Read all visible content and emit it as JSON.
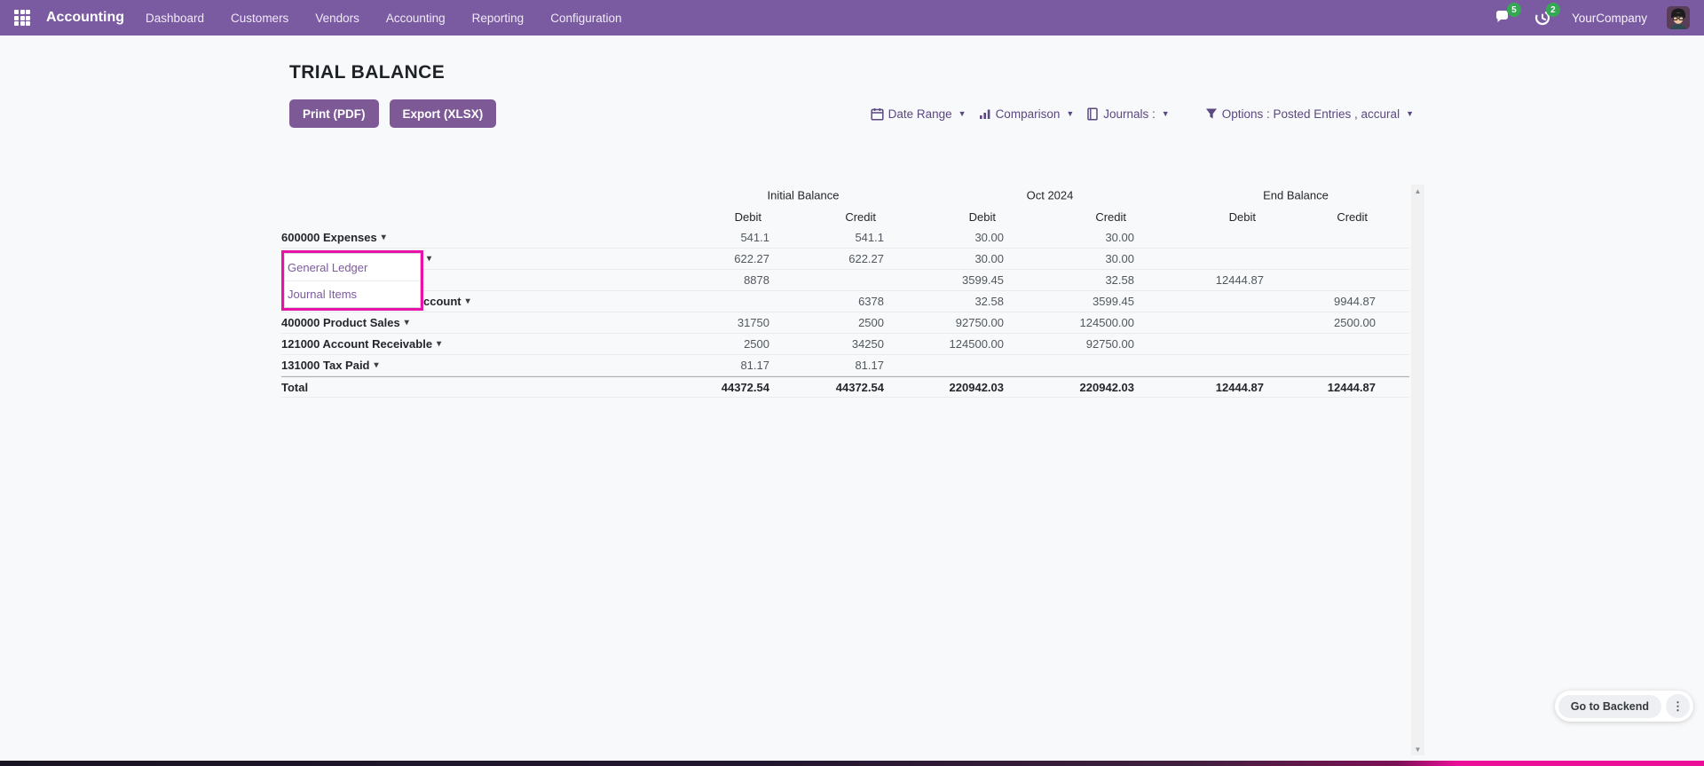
{
  "navbar": {
    "brand": "Accounting",
    "menus": [
      "Dashboard",
      "Customers",
      "Vendors",
      "Accounting",
      "Reporting",
      "Configuration"
    ],
    "messages_badge": "5",
    "activities_badge": "2",
    "company": "YourCompany"
  },
  "report": {
    "title": "TRIAL BALANCE",
    "buttons": {
      "print": "Print (PDF)",
      "export": "Export (XLSX)"
    },
    "filters": [
      {
        "icon": "calendar-icon",
        "label": "Date Range"
      },
      {
        "icon": "bar-chart-icon",
        "label": "Comparison"
      },
      {
        "icon": "journal-icon",
        "label": "Journals :"
      },
      {
        "icon": "filter-icon",
        "label": "Options : Posted Entries , accural"
      }
    ]
  },
  "table": {
    "groups": [
      "Initial Balance",
      "Oct 2024",
      "End Balance"
    ],
    "subheaders": [
      "Debit",
      "Credit",
      "Debit",
      "Credit",
      "Debit",
      "Credit"
    ],
    "rows": [
      {
        "name": "600000 Expenses",
        "caret": true,
        "values": [
          "541.1",
          "541.1",
          "30.00",
          "30.00",
          "",
          ""
        ]
      },
      {
        "name": "",
        "caret": true,
        "values": [
          "622.27",
          "622.27",
          "30.00",
          "30.00",
          "",
          ""
        ]
      },
      {
        "name": "",
        "caret": false,
        "values": [
          "8878",
          "",
          "3599.45",
          "32.58",
          "12444.87",
          ""
        ]
      },
      {
        "name": "ccount",
        "caret": true,
        "values": [
          "",
          "6378",
          "32.58",
          "3599.45",
          "",
          "9944.87"
        ]
      },
      {
        "name": "400000 Product Sales",
        "caret": true,
        "values": [
          "31750",
          "2500",
          "92750.00",
          "124500.00",
          "",
          "2500.00"
        ]
      },
      {
        "name": "121000 Account Receivable",
        "caret": true,
        "values": [
          "2500",
          "34250",
          "124500.00",
          "92750.00",
          "",
          ""
        ]
      },
      {
        "name": "131000 Tax Paid",
        "caret": true,
        "values": [
          "81.17",
          "81.17",
          "",
          "",
          "",
          ""
        ]
      }
    ],
    "total": {
      "name": "Total",
      "values": [
        "44372.54",
        "44372.54",
        "220942.03",
        "220942.03",
        "12444.87",
        "12444.87"
      ]
    }
  },
  "dropdown": {
    "items": [
      "General Ledger",
      "Journal Items"
    ],
    "highlight_color": "#e912a7"
  },
  "backend": {
    "label": "Go to Backend"
  },
  "colors": {
    "navbar": "#7a5ba1",
    "button": "#7d5a96",
    "badge": "#35a854",
    "highlight": "#e912a7"
  }
}
